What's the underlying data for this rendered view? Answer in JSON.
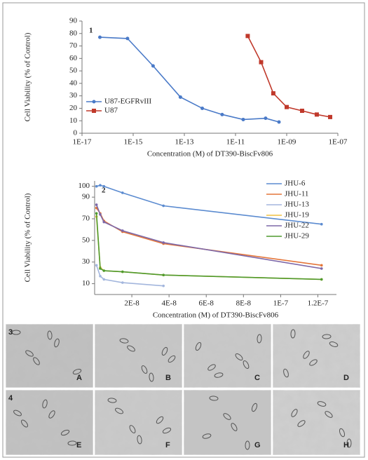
{
  "chart_data": [
    {
      "type": "line",
      "panel_label": "1",
      "xlabel": "Concentration (M) of DT390-BiscFv806",
      "ylabel": "Cell Viability (% of Control)",
      "xscale": "log",
      "xlim": [
        1e-17,
        1e-07
      ],
      "xticks": [
        {
          "value": 1e-17,
          "label": "1E-17"
        },
        {
          "value": 1e-15,
          "label": "1E-15"
        },
        {
          "value": 1e-13,
          "label": "1E-13"
        },
        {
          "value": 1e-11,
          "label": "1E-11"
        },
        {
          "value": 1e-09,
          "label": "1E-09"
        },
        {
          "value": 1e-07,
          "label": "1E-07"
        }
      ],
      "ylim": [
        0,
        90
      ],
      "yticks": [
        0,
        10,
        20,
        30,
        40,
        50,
        60,
        70,
        80,
        90
      ],
      "grid": false,
      "legend": "lower-left",
      "series": [
        {
          "name": "U87-EGFRvIII",
          "color": "#4a7ac8",
          "marker": "circle",
          "x": [
            5e-17,
            6e-16,
            6e-15,
            7e-14,
            5e-13,
            3e-12,
            2e-11,
            1.5e-10,
            5e-10
          ],
          "values": [
            77,
            76,
            54,
            29,
            20,
            15,
            11,
            12,
            9
          ]
        },
        {
          "name": "U87",
          "color": "#c0392b",
          "marker": "square",
          "x": [
            3e-11,
            1e-10,
            3e-10,
            1e-09,
            4e-09,
            1.5e-08,
            5e-08
          ],
          "values": [
            78,
            57,
            32,
            21,
            18,
            15,
            13
          ]
        }
      ]
    },
    {
      "type": "line",
      "panel_label": "2",
      "xlabel": "Concentration (M) of DT390-BiscFv806",
      "ylabel": "Cell Viability (% of Control)",
      "xscale": "linear",
      "xlim": [
        0,
        1.3e-07
      ],
      "xticks": [
        {
          "value": 2e-08,
          "label": "2E-8"
        },
        {
          "value": 4e-08,
          "label": "4E-8"
        },
        {
          "value": 6e-08,
          "label": "6E-8"
        },
        {
          "value": 8e-08,
          "label": "8E-8"
        },
        {
          "value": 1e-07,
          "label": "1E-7"
        },
        {
          "value": 1.2e-07,
          "label": "1.2E-7"
        }
      ],
      "ylim": [
        0,
        105
      ],
      "yticks": [
        10,
        30,
        50,
        70,
        90,
        100
      ],
      "grid": false,
      "legend": "upper-right",
      "series": [
        {
          "name": "JHU-6",
          "color": "#5b8bd0",
          "marker": "dot",
          "x": [
            1e-09,
            3e-09,
            5e-09,
            1.5e-08,
            3.7e-08,
            1.22e-07
          ],
          "values": [
            100,
            101,
            100,
            94,
            82,
            65
          ]
        },
        {
          "name": "JHU-11",
          "color": "#e4763a",
          "marker": "dot",
          "x": [
            1e-09,
            3e-09,
            5e-09,
            1.5e-08,
            3.7e-08,
            1.22e-07
          ],
          "values": [
            80,
            75,
            68,
            58,
            47,
            27
          ]
        },
        {
          "name": "JHU-13",
          "color": "#a3b6dd",
          "marker": "dot",
          "x": [
            1e-09,
            3e-09,
            5e-09,
            1.5e-08,
            3.7e-08,
            1.22e-07
          ],
          "values": [
            27,
            17,
            14,
            11,
            8,
            null
          ]
        },
        {
          "name": "JHU-19",
          "color": "#f0c040",
          "marker": "dot",
          "x": [
            1e-09,
            3e-09,
            5e-09,
            1.5e-08,
            3.7e-08,
            1.22e-07
          ],
          "values": [
            72,
            25,
            22,
            21,
            18,
            14
          ]
        },
        {
          "name": "JHU-22",
          "color": "#7d68a8",
          "marker": "dot",
          "x": [
            1e-09,
            3e-09,
            5e-09,
            1.5e-08,
            3.7e-08,
            1.22e-07
          ],
          "values": [
            83,
            74,
            67,
            59,
            48,
            24
          ]
        },
        {
          "name": "JHU-29",
          "color": "#4e9a2e",
          "marker": "dot",
          "x": [
            1e-09,
            3e-09,
            5e-09,
            1.5e-08,
            3.7e-08,
            1.22e-07
          ],
          "values": [
            75,
            24,
            22,
            21,
            18,
            14
          ]
        }
      ]
    }
  ],
  "micrographs": {
    "row_labels": [
      "3",
      "4"
    ],
    "panel_letters": [
      "A",
      "B",
      "C",
      "D",
      "E",
      "F",
      "G",
      "H"
    ]
  }
}
